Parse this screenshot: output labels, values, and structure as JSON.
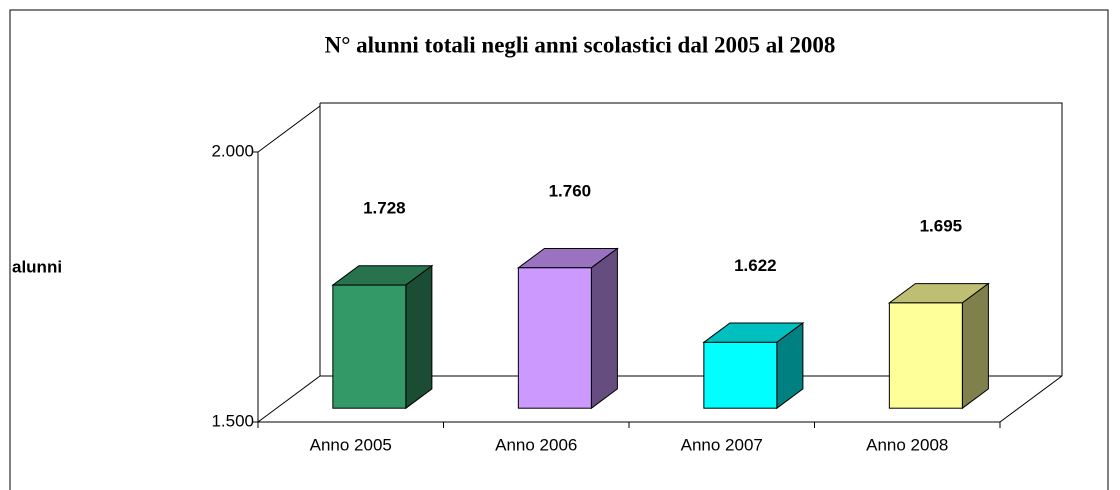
{
  "chart_data": {
    "type": "bar3d",
    "title": "N° alunni totali negli anni scolastici dal 2005 al 2008",
    "ylabel": "alunni",
    "categories": [
      "Anno 2005",
      "Anno 2006",
      "Anno 2007",
      "Anno 2008"
    ],
    "values": [
      1728,
      1760,
      1622,
      1695
    ],
    "value_labels": [
      "1.728",
      "1.760",
      "1.622",
      "1.695"
    ],
    "colors": [
      "#339966",
      "#cc99ff",
      "#00ffff",
      "#ffff99"
    ],
    "ylim": [
      1500,
      2000
    ],
    "yticks": [
      {
        "value": 1500,
        "label": "1.500"
      },
      {
        "value": 2000,
        "label": "2.000"
      }
    ]
  }
}
